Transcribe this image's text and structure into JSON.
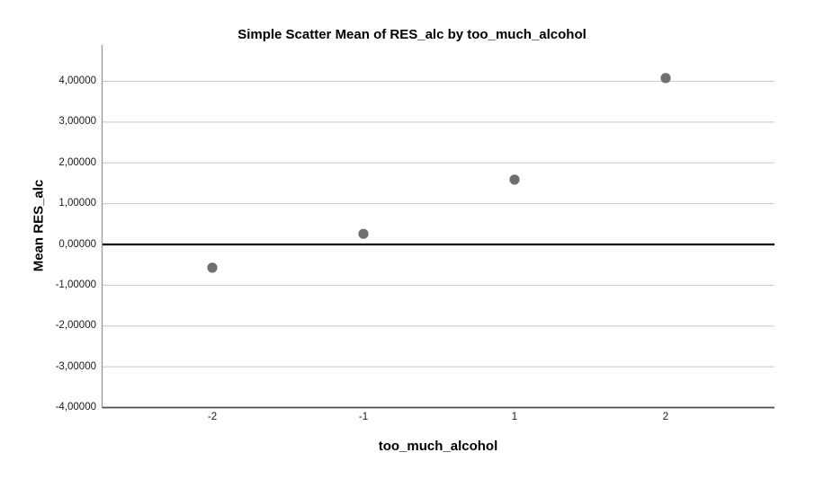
{
  "chart_data": {
    "type": "scatter",
    "title": "Simple Scatter Mean of RES_alc by too_much_alcohol",
    "xlabel": "too_much_alcohol",
    "ylabel": "Mean RES_alc",
    "x_categories": [
      "-2",
      "-1",
      "1",
      "2"
    ],
    "series": [
      {
        "name": "Mean RES_alc",
        "points": [
          {
            "x": "-2",
            "y": -0.57
          },
          {
            "x": "-1",
            "y": 0.26
          },
          {
            "x": "1",
            "y": 1.59
          },
          {
            "x": "2",
            "y": 4.08
          }
        ]
      }
    ],
    "y_ticks": [
      {
        "value": 4,
        "label": "4,00000"
      },
      {
        "value": 3,
        "label": "3,00000"
      },
      {
        "value": 2,
        "label": "2,00000"
      },
      {
        "value": 1,
        "label": "1,00000"
      },
      {
        "value": 0,
        "label": "0,00000"
      },
      {
        "value": -1,
        "label": "-1,00000"
      },
      {
        "value": -2,
        "label": "-2,00000"
      },
      {
        "value": -3,
        "label": "-3,00000"
      },
      {
        "value": -4,
        "label": "-4,00000"
      }
    ],
    "ylim": [
      -4,
      4
    ],
    "reference_line_y": 0,
    "grid": "horizontal-only",
    "legend_position": "none",
    "colors": {
      "marker": "#6f6f6f",
      "gridline": "#c9c9c9",
      "reference_line": "#0d0d0d",
      "y_axis_line": "#9c9c9c",
      "x_axis_line": "#4d4d4d",
      "background": "#ffffff",
      "text": "#000000"
    }
  }
}
